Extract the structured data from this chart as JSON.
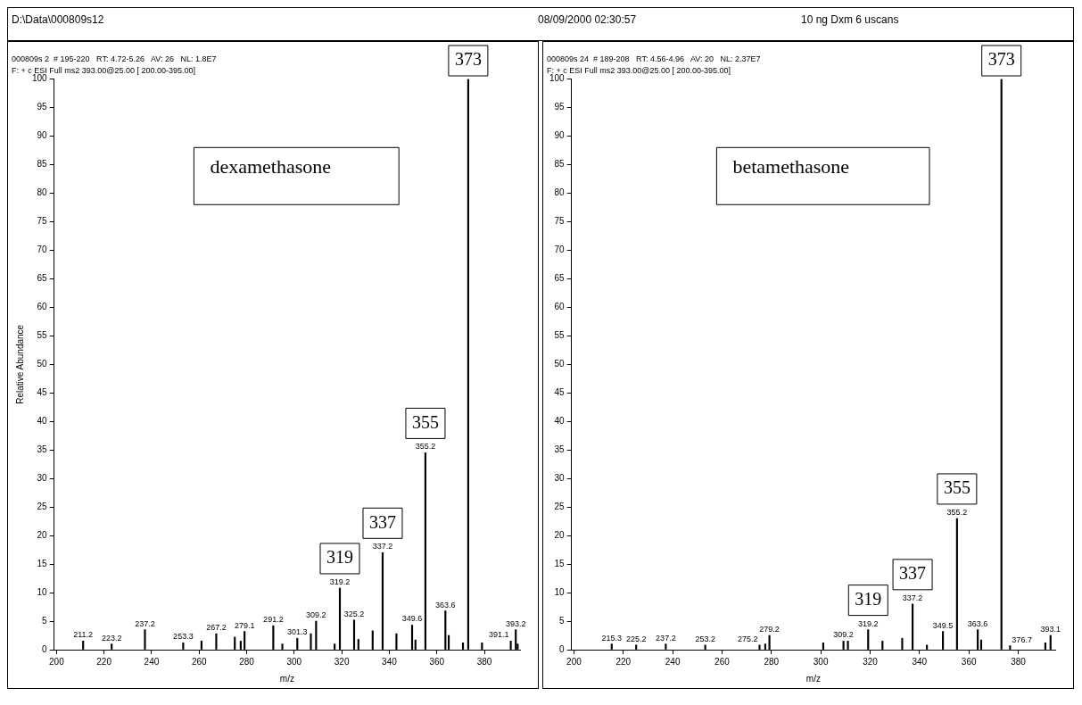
{
  "chart_data": [
    {
      "type": "other",
      "annotations": [
        "D:\\Data\\000809s12",
        "08/09/2000 02:30:57",
        "10 ng Dxm 6 uscans"
      ]
    },
    {
      "type": "bar",
      "title": "000809s 2  # 195-220   RT: 4.72-5.26   AV: 26   NL: 1.8E7",
      "subtitle": "F: + c ESI Full ms2 393.00@25.00 [ 200.00-395.00]",
      "xlabel": "m/z",
      "ylabel": "Relative Abundance",
      "x": [
        211.2,
        223.2,
        237.2,
        253.3,
        261,
        267.2,
        275,
        277.5,
        279.1,
        291.2,
        295,
        301.3,
        307,
        309.2,
        317,
        319.2,
        325.2,
        327,
        333,
        337.2,
        343,
        349.6,
        351,
        355.2,
        363.6,
        365,
        371,
        373.2,
        379,
        391.1,
        393.2,
        394
      ],
      "values": [
        1.5,
        1,
        3.5,
        1.2,
        1.5,
        2.8,
        2.2,
        1.5,
        3.2,
        4.2,
        1,
        2,
        2.8,
        5,
        1,
        10.8,
        5.2,
        1.8,
        3.3,
        17,
        2.8,
        4.3,
        1.7,
        34.5,
        6.8,
        2.5,
        1.2,
        100,
        1.2,
        1.5,
        3.5,
        1
      ],
      "color": "#000000",
      "xlim": [
        199,
        395
      ],
      "xticks": [
        200,
        220,
        240,
        260,
        280,
        300,
        320,
        340,
        360,
        380
      ],
      "ylim": [
        0,
        100
      ],
      "yticks": [
        0,
        5,
        10,
        15,
        20,
        25,
        30,
        35,
        40,
        45,
        50,
        55,
        60,
        65,
        70,
        75,
        80,
        85,
        90,
        95,
        100
      ],
      "grid": false,
      "legend": false,
      "annotations": [
        "dexamethasone",
        {
          "text": "211.2",
          "x": 211.2,
          "y": 1.5
        },
        {
          "text": "223.2",
          "x": 223.2,
          "y": 1
        },
        {
          "text": "237.2",
          "x": 237.2,
          "y": 3.5
        },
        {
          "text": "253.3",
          "x": 253.3,
          "y": 1.2
        },
        {
          "text": "267.2",
          "x": 267.2,
          "y": 2.8
        },
        {
          "text": "279.1",
          "x": 279.1,
          "y": 3.2
        },
        {
          "text": "291.2",
          "x": 291.2,
          "y": 4.2
        },
        {
          "text": "301.3",
          "x": 301.3,
          "y": 2
        },
        {
          "text": "309.2",
          "x": 309.2,
          "y": 5
        },
        {
          "text": "319.2",
          "x": 319.2,
          "y": 10.8
        },
        {
          "text": "325.2",
          "x": 325.2,
          "y": 5.2
        },
        {
          "text": "337.2",
          "x": 337.2,
          "y": 17
        },
        {
          "text": "349.6",
          "x": 349.6,
          "y": 4.3
        },
        {
          "text": "355.2",
          "x": 355.2,
          "y": 34.5
        },
        {
          "text": "363.6",
          "x": 363.6,
          "y": 6.8
        },
        {
          "text": "391.1",
          "x": 391.1,
          "y": 1.5
        },
        {
          "text": "393.2",
          "x": 393.2,
          "y": 3.5
        },
        {
          "text": "319",
          "x": 319.2,
          "y": 10.8
        },
        {
          "text": "337",
          "x": 337.2,
          "y": 17
        },
        {
          "text": "355",
          "x": 355.2,
          "y": 34.5
        },
        {
          "text": "373",
          "x": 373.2,
          "y": 100
        }
      ]
    },
    {
      "type": "bar",
      "title": "000809s 24  # 189-208   RT: 4.56-4.96   AV: 20   NL: 2.37E7",
      "subtitle": "F: + c ESI Full ms2 393.00@25.00 [ 200.00-395.00]",
      "xlabel": "m/z",
      "x": [
        215.3,
        225.2,
        237.2,
        253.2,
        275.2,
        277.5,
        279.2,
        301,
        309.2,
        311,
        319.2,
        325,
        333,
        337.2,
        343,
        349.5,
        355.2,
        363.6,
        365,
        373.2,
        376.7,
        391,
        393.1
      ],
      "values": [
        1,
        0.8,
        1,
        0.8,
        0.8,
        1,
        2.5,
        1.2,
        1.5,
        1.5,
        3.5,
        1.5,
        2,
        8,
        0.8,
        3.2,
        23,
        3.5,
        1.7,
        100,
        0.7,
        1.2,
        2.5
      ],
      "color": "#000000",
      "xlim": [
        199,
        395
      ],
      "xticks": [
        200,
        220,
        240,
        260,
        280,
        300,
        320,
        340,
        360,
        380
      ],
      "ylim": [
        0,
        100
      ],
      "yticks": [
        0,
        5,
        10,
        15,
        20,
        25,
        30,
        35,
        40,
        45,
        50,
        55,
        60,
        65,
        70,
        75,
        80,
        85,
        90,
        95,
        100
      ],
      "grid": false,
      "legend": false,
      "annotations": [
        "betamethasone",
        {
          "text": "215.3",
          "x": 215.3,
          "y": 1
        },
        {
          "text": "225.2",
          "x": 225.2,
          "y": 0.8
        },
        {
          "text": "237.2",
          "x": 237.2,
          "y": 1
        },
        {
          "text": "253.2",
          "x": 253.2,
          "y": 0.8
        },
        {
          "text": "275.2",
          "x": 275.2,
          "y": 0.8
        },
        {
          "text": "279.2",
          "x": 279.2,
          "y": 2.5
        },
        {
          "text": "309.2",
          "x": 309.2,
          "y": 1.5
        },
        {
          "text": "319.2",
          "x": 319.2,
          "y": 3.5
        },
        {
          "text": "337.2",
          "x": 337.2,
          "y": 8
        },
        {
          "text": "349.5",
          "x": 349.5,
          "y": 3.2
        },
        {
          "text": "355.2",
          "x": 355.2,
          "y": 23
        },
        {
          "text": "363.6",
          "x": 363.6,
          "y": 3.5
        },
        {
          "text": "376.7",
          "x": 376.7,
          "y": 0.7
        },
        {
          "text": "393.1",
          "x": 393.1,
          "y": 2.5
        },
        {
          "text": "319",
          "x": 319.2,
          "y": 3.5
        },
        {
          "text": "337",
          "x": 337.2,
          "y": 8
        },
        {
          "text": "355",
          "x": 355.2,
          "y": 23
        },
        {
          "text": "373",
          "x": 373.2,
          "y": 100
        }
      ]
    }
  ]
}
